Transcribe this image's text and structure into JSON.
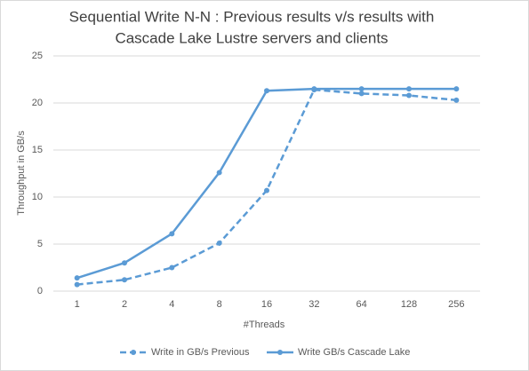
{
  "chart_data": {
    "type": "line",
    "title": [
      "Sequential Write N-N :  Previous results v/s results with",
      "Cascade Lake Lustre servers and clients"
    ],
    "x_label": "#Threads",
    "y_label": "Throughput in GB/s",
    "categories": [
      "1",
      "2",
      "4",
      "8",
      "16",
      "32",
      "64",
      "128",
      "256"
    ],
    "series": [
      {
        "name": "Write in GB/s Previous",
        "color": "#5b9bd5",
        "dashed": true,
        "values": [
          0.7,
          1.2,
          2.5,
          5.1,
          10.7,
          21.4,
          21.0,
          20.8,
          20.3
        ]
      },
      {
        "name": "Write GB/s Cascade Lake",
        "color": "#5b9bd5",
        "dashed": false,
        "values": [
          1.4,
          3.0,
          6.1,
          12.6,
          21.3,
          21.5,
          21.5,
          21.5,
          21.5
        ]
      }
    ],
    "ylim": [
      0,
      25
    ],
    "yticks": [
      0,
      5,
      10,
      15,
      20,
      25
    ],
    "grid": true,
    "legend": "bottom"
  }
}
